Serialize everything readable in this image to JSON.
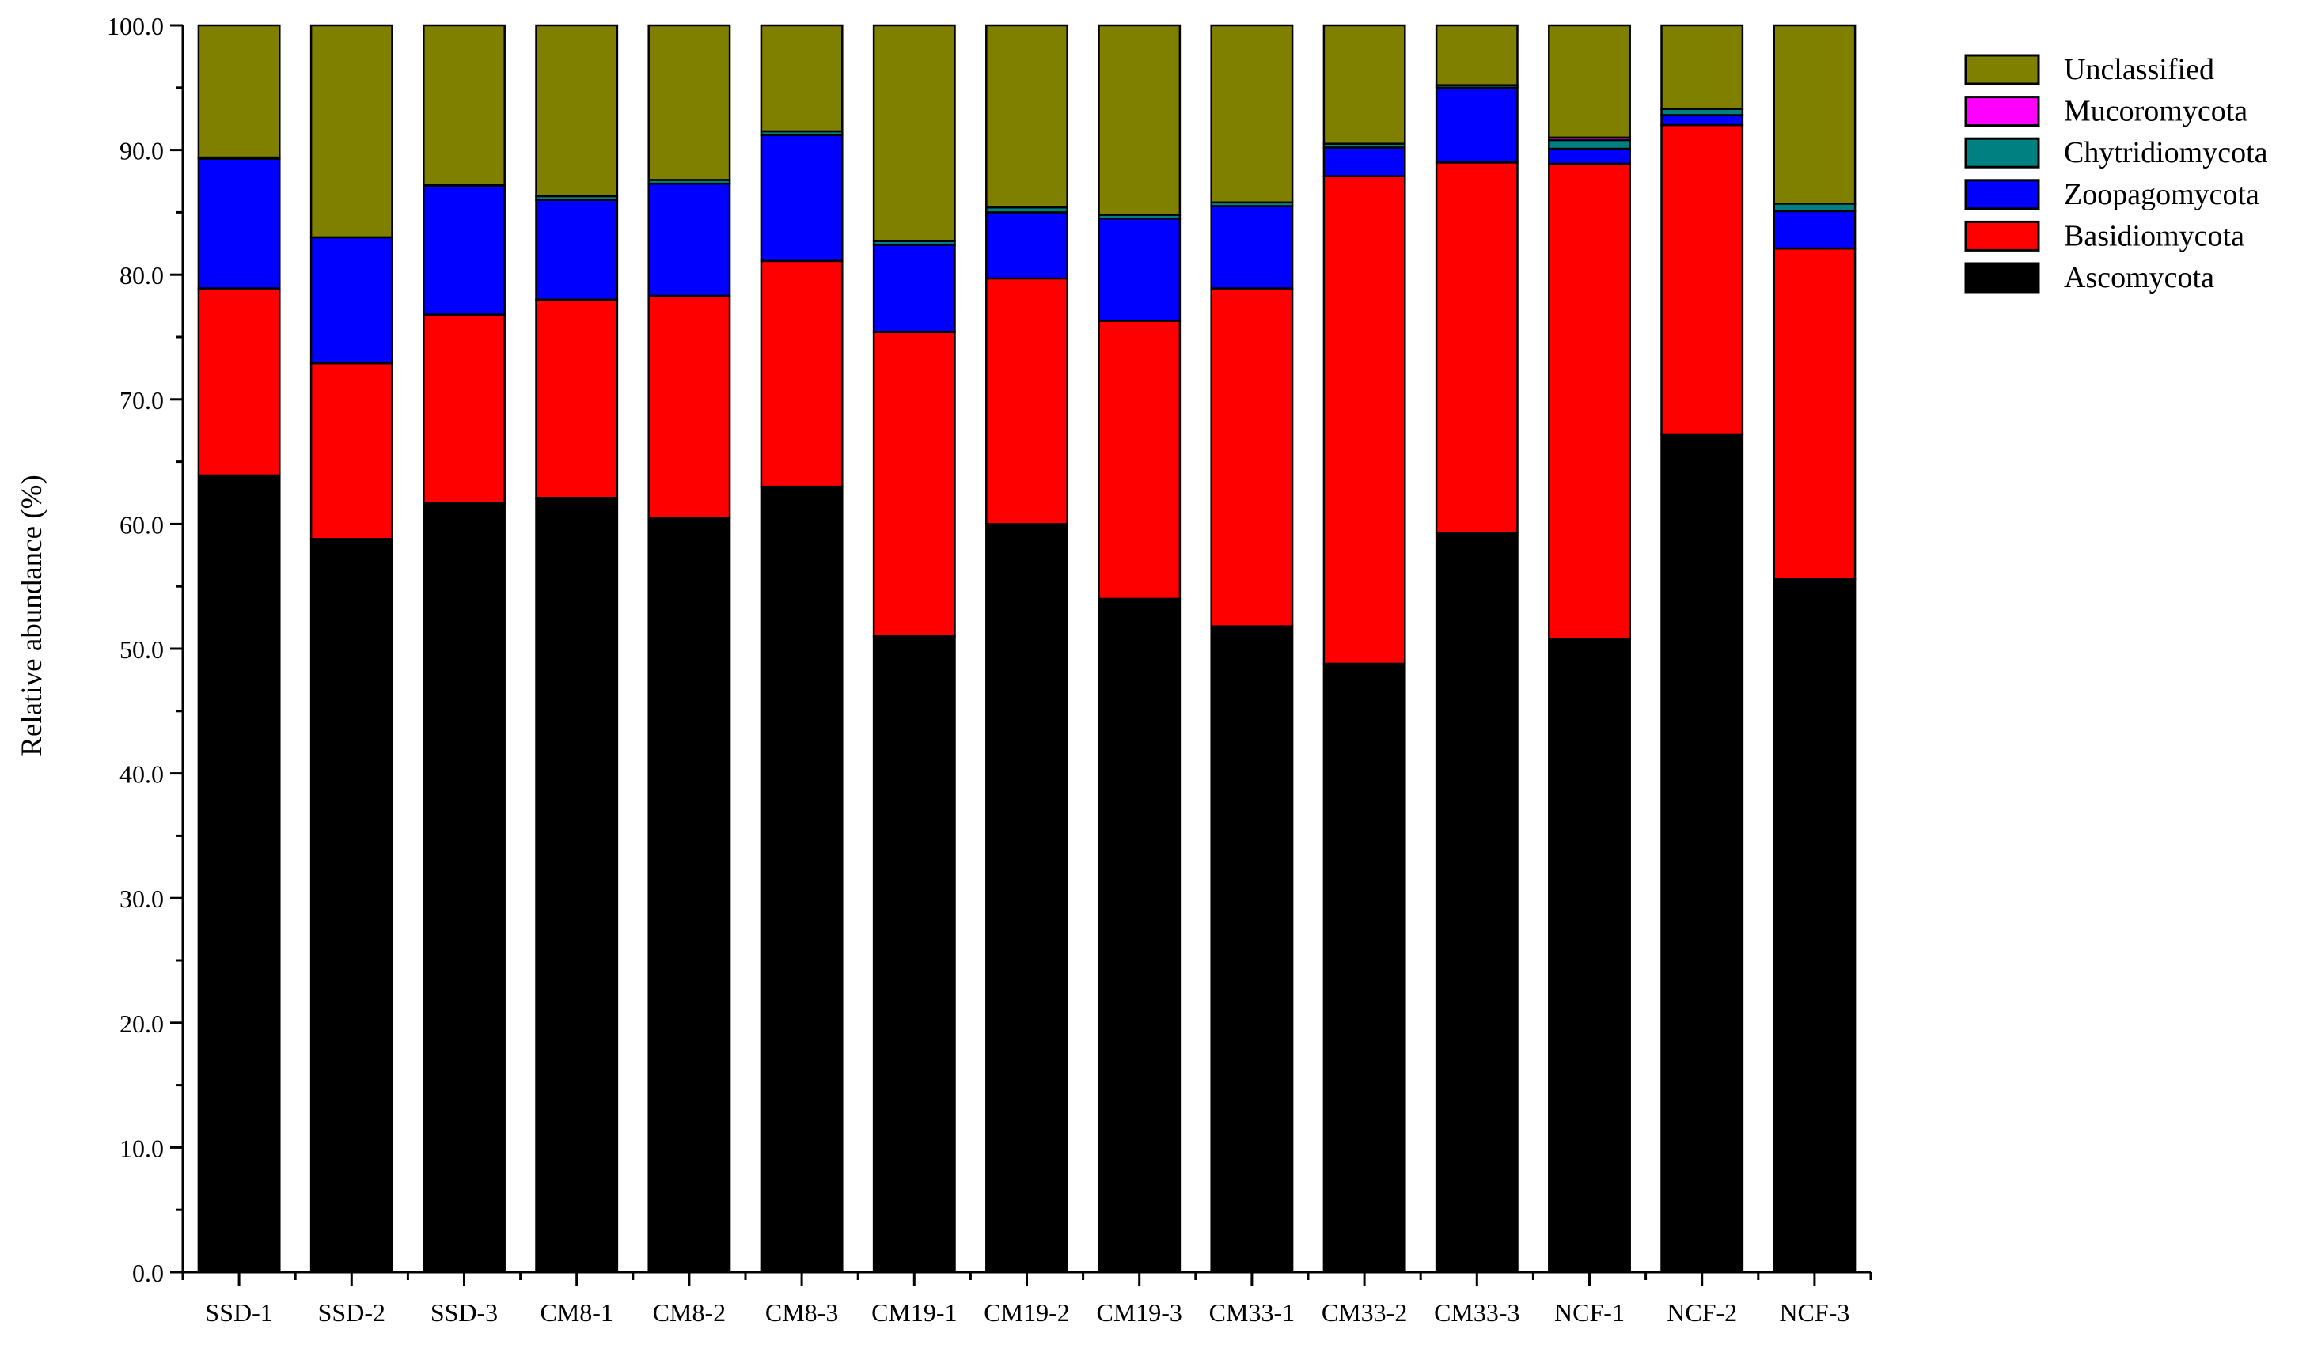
{
  "chart_data": {
    "type": "bar",
    "stacked": true,
    "title": "",
    "xlabel": "",
    "ylabel": "Relative abundance (%)",
    "ylim": [
      0,
      100
    ],
    "yticks": [
      "0.0",
      "10.0",
      "20.0",
      "30.0",
      "40.0",
      "50.0",
      "60.0",
      "70.0",
      "80.0",
      "90.0",
      "100.0"
    ],
    "grid": false,
    "legend_position": "top-right",
    "categories": [
      "SSD-1",
      "SSD-2",
      "SSD-3",
      "CM8-1",
      "CM8-2",
      "CM8-3",
      "CM19-1",
      "CM19-2",
      "CM19-3",
      "CM33-1",
      "CM33-2",
      "CM33-3",
      "NCF-1",
      "NCF-2",
      "NCF-3"
    ],
    "series": [
      {
        "name": "Ascomycota",
        "color": "#000000",
        "values": [
          63.9,
          58.8,
          61.7,
          62.1,
          60.5,
          63.0,
          51.0,
          60.0,
          54.0,
          51.8,
          48.8,
          59.3,
          50.8,
          67.2,
          55.6
        ]
      },
      {
        "name": "Basidiomycota",
        "color": "#ff0000",
        "values": [
          15.0,
          14.1,
          15.1,
          15.9,
          17.8,
          18.1,
          24.4,
          19.7,
          22.3,
          27.1,
          39.1,
          29.7,
          38.1,
          24.8,
          26.5
        ]
      },
      {
        "name": "Zoopagomycota",
        "color": "#0000ff",
        "values": [
          10.4,
          10.1,
          10.3,
          8.0,
          9.0,
          10.1,
          7.0,
          5.3,
          8.2,
          6.6,
          2.3,
          6.0,
          1.2,
          0.8,
          3.0
        ]
      },
      {
        "name": "Chytridiomycota",
        "color": "#008080",
        "values": [
          0.1,
          0.0,
          0.1,
          0.3,
          0.3,
          0.3,
          0.3,
          0.4,
          0.3,
          0.3,
          0.3,
          0.2,
          0.7,
          0.5,
          0.6
        ]
      },
      {
        "name": "Mucoromycota",
        "color": "#ff00ff",
        "values": [
          0.0,
          0.0,
          0.0,
          0.0,
          0.0,
          0.0,
          0.0,
          0.0,
          0.0,
          0.0,
          0.0,
          0.0,
          0.2,
          0.0,
          0.0
        ]
      },
      {
        "name": "Unclassified",
        "color": "#808000",
        "values": [
          10.6,
          17.0,
          12.8,
          13.7,
          12.4,
          8.5,
          17.3,
          14.6,
          15.2,
          14.2,
          9.5,
          4.8,
          9.0,
          6.7,
          14.3
        ]
      }
    ],
    "legend_order": [
      "Unclassified",
      "Mucoromycota",
      "Chytridiomycota",
      "Zoopagomycota",
      "Basidiomycota",
      "Ascomycota"
    ]
  }
}
